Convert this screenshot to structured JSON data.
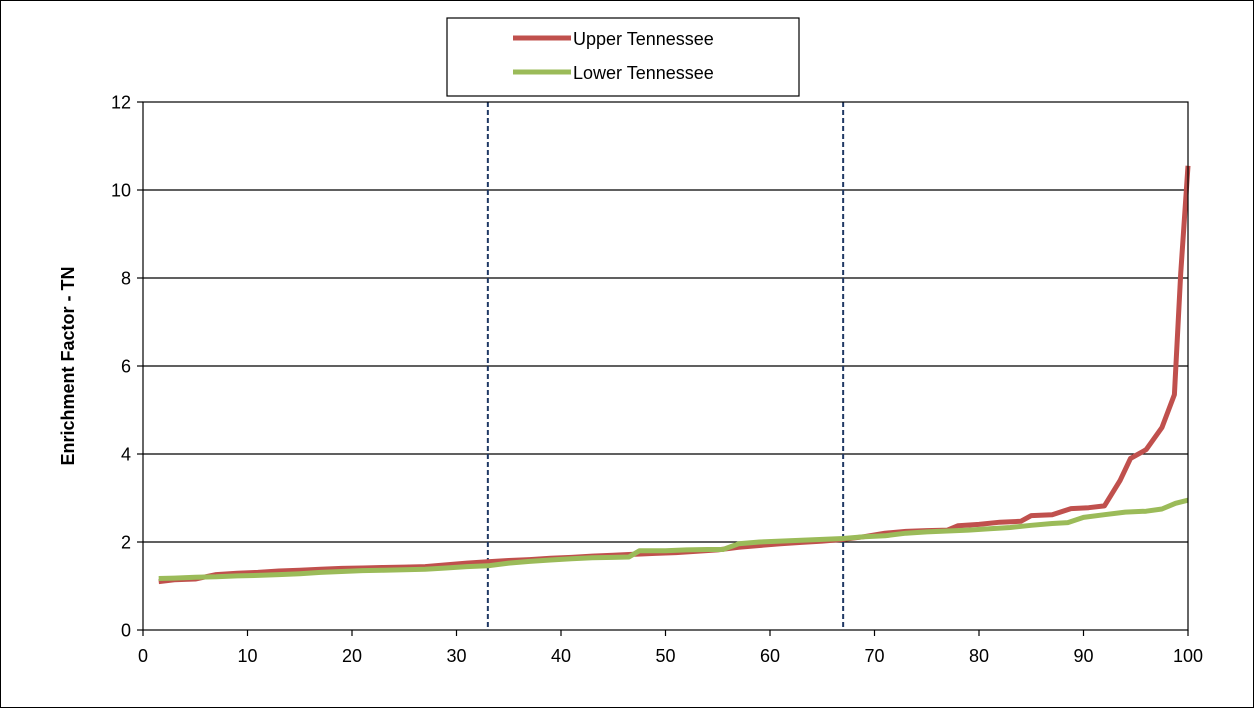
{
  "chart_data": {
    "type": "line",
    "title": "",
    "xlabel": "",
    "ylabel": "Enrichment Factor - TN",
    "xlim": [
      0,
      100
    ],
    "ylim": [
      0,
      12
    ],
    "xticks": [
      0,
      10,
      20,
      30,
      40,
      50,
      60,
      70,
      80,
      90,
      100
    ],
    "yticks": [
      0,
      2,
      4,
      6,
      8,
      10,
      12
    ],
    "grid": "horizontal",
    "legend": "top-center",
    "reference_lines_x": [
      33,
      67
    ],
    "reference_line_color": "#1f3864",
    "series": [
      {
        "name": "Upper Tennessee",
        "color": "#c0504d",
        "x": [
          1.5,
          3,
          5,
          7,
          9,
          11,
          13,
          15,
          17,
          19,
          21,
          23,
          25,
          27,
          29,
          31,
          33,
          35,
          37,
          39,
          41,
          43,
          45,
          47,
          49,
          51,
          53,
          55,
          57,
          59,
          61,
          63,
          65,
          67,
          69,
          71,
          73,
          75,
          77,
          78,
          80,
          82,
          84,
          85,
          87,
          88.8,
          90.5,
          92,
          93.5,
          94.5,
          96,
          97.5,
          98.7,
          99.3,
          100
        ],
        "y": [
          1.1,
          1.14,
          1.16,
          1.26,
          1.29,
          1.31,
          1.34,
          1.36,
          1.38,
          1.4,
          1.41,
          1.42,
          1.43,
          1.44,
          1.48,
          1.52,
          1.55,
          1.58,
          1.6,
          1.63,
          1.65,
          1.68,
          1.7,
          1.72,
          1.74,
          1.76,
          1.79,
          1.82,
          1.88,
          1.92,
          1.96,
          1.99,
          2.02,
          2.06,
          2.12,
          2.2,
          2.24,
          2.26,
          2.27,
          2.37,
          2.4,
          2.45,
          2.47,
          2.6,
          2.62,
          2.76,
          2.78,
          2.82,
          3.4,
          3.9,
          4.1,
          4.6,
          5.35,
          8.1,
          10.55
        ]
      },
      {
        "name": "Lower Tennessee",
        "color": "#9bbb59",
        "x": [
          1.5,
          3,
          5,
          7,
          9,
          11,
          13,
          15,
          17,
          19,
          21,
          23,
          25,
          27,
          29,
          31,
          33,
          35,
          37,
          39,
          41,
          43,
          45,
          46.5,
          47.5,
          50,
          52,
          54,
          55.5,
          57,
          59,
          61,
          63,
          65,
          67,
          69,
          71,
          73,
          75,
          77,
          79,
          81,
          83,
          85,
          87,
          88.5,
          90,
          92,
          94,
          96,
          97.5,
          98.8,
          100
        ],
        "y": [
          1.17,
          1.18,
          1.2,
          1.21,
          1.23,
          1.24,
          1.26,
          1.28,
          1.31,
          1.33,
          1.35,
          1.36,
          1.37,
          1.38,
          1.41,
          1.44,
          1.46,
          1.52,
          1.56,
          1.59,
          1.62,
          1.64,
          1.65,
          1.66,
          1.8,
          1.8,
          1.82,
          1.83,
          1.83,
          1.96,
          2.0,
          2.02,
          2.04,
          2.06,
          2.08,
          2.12,
          2.14,
          2.2,
          2.23,
          2.25,
          2.27,
          2.3,
          2.33,
          2.38,
          2.42,
          2.44,
          2.56,
          2.62,
          2.68,
          2.7,
          2.75,
          2.88,
          2.95
        ]
      }
    ]
  }
}
